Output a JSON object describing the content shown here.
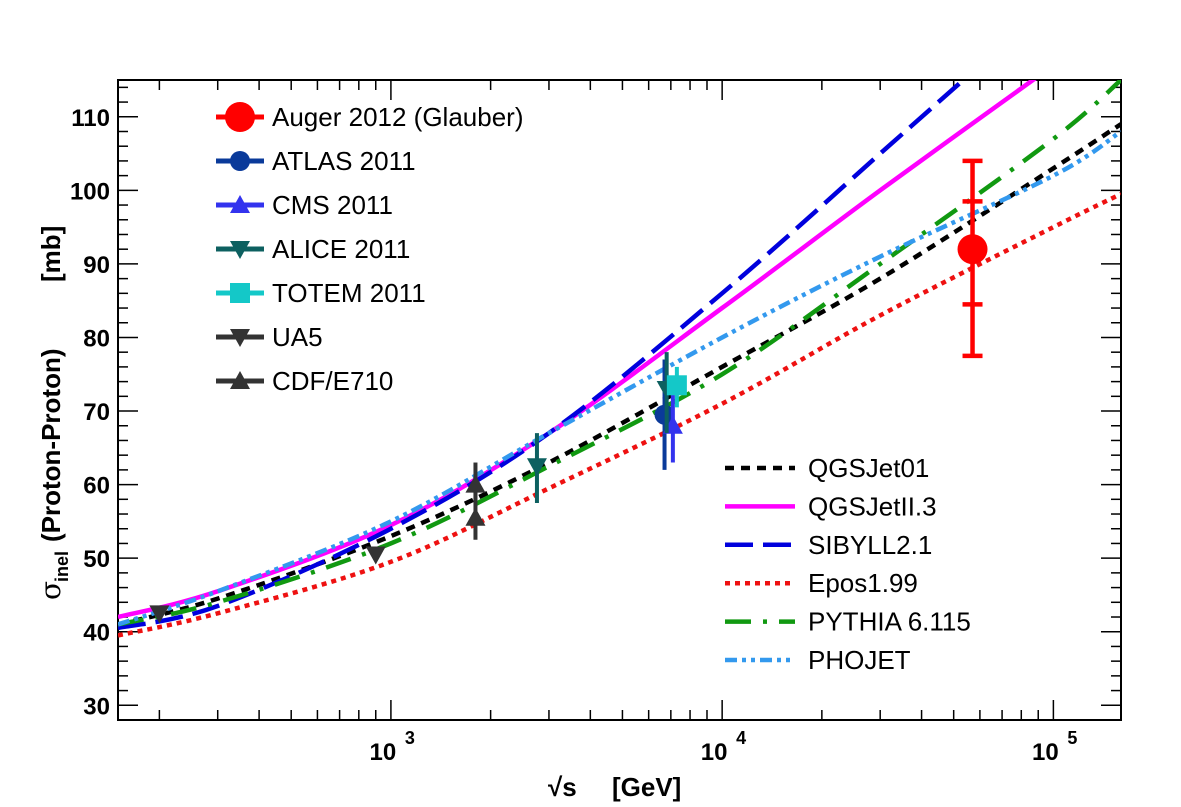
{
  "chart_data": {
    "type": "line",
    "xlabel_root": "√s",
    "xlabel_unit": "[GeV]",
    "ylabel_sigma": "σ",
    "ylabel_sub": "inel",
    "ylabel_main": "(Proton-Proton)",
    "ylabel_unit": "[mb]",
    "x_scale": "log",
    "xlim": [
      150,
      160000
    ],
    "ylim": [
      28,
      115
    ],
    "x_ticks": [
      {
        "value": 1000,
        "base": "10",
        "exp": "3"
      },
      {
        "value": 10000,
        "base": "10",
        "exp": "4"
      },
      {
        "value": 100000,
        "base": "10",
        "exp": "5"
      }
    ],
    "y_ticks": [
      30,
      40,
      50,
      60,
      70,
      80,
      90,
      100,
      110
    ],
    "grid": false,
    "legend_placement": [
      "top-left",
      "bottom-right"
    ],
    "data_series": [
      {
        "name": "Auger 2012 (Glauber)",
        "color": "#ff0000",
        "marker": "circle",
        "points": [
          {
            "x": 57000,
            "y": 92,
            "stat_lo": 84.5,
            "stat_hi": 98.5,
            "sys_lo": 77.5,
            "sys_hi": 104
          }
        ]
      },
      {
        "name": "ATLAS 2011",
        "color": "#0a3a9a",
        "marker": "circle",
        "points": [
          {
            "x": 6700,
            "y": 69.5,
            "sys_lo": 62,
            "sys_hi": 77
          }
        ]
      },
      {
        "name": "CMS 2011",
        "color": "#3333ee",
        "marker": "triangle-up",
        "points": [
          {
            "x": 7100,
            "y": 68,
            "sys_lo": 63,
            "sys_hi": 72.5
          }
        ]
      },
      {
        "name": "ALICE 2011",
        "color": "#0d6060",
        "marker": "triangle-down",
        "points": [
          {
            "x": 2760,
            "y": 62.5,
            "sys_lo": 57.5,
            "sys_hi": 67
          },
          {
            "x": 6800,
            "y": 73,
            "sys_lo": 67,
            "sys_hi": 78
          }
        ]
      },
      {
        "name": "TOTEM 2011",
        "color": "#14c8c8",
        "marker": "square",
        "points": [
          {
            "x": 7300,
            "y": 73.5,
            "sys_lo": 70.5,
            "sys_hi": 76
          }
        ]
      },
      {
        "name": "UA5",
        "color": "#333333",
        "marker": "triangle-down",
        "points": [
          {
            "x": 200,
            "y": 42.5
          },
          {
            "x": 900,
            "y": 50.5
          }
        ]
      },
      {
        "name": "CDF/E710",
        "color": "#333333",
        "marker": "triangle-up",
        "points": [
          {
            "x": 1800,
            "y": 55.5,
            "sys_lo": 52.5,
            "sys_hi": 59.5
          },
          {
            "x": 1800,
            "y": 60,
            "sys_lo": 57.5,
            "sys_hi": 63
          }
        ]
      }
    ],
    "model_series": [
      {
        "name": "QGSJet01",
        "color": "#000000",
        "dash": "short-dash",
        "x": [
          150,
          300,
          1000,
          3000,
          10000,
          30000,
          100000,
          160000
        ],
        "y": [
          41,
          44.5,
          53,
          63,
          76,
          88,
          103,
          109
        ]
      },
      {
        "name": "QGSJetII.3",
        "color": "#ff00ff",
        "dash": "solid",
        "x": [
          150,
          300,
          1000,
          3000,
          10000,
          30000,
          100000
        ],
        "y": [
          42,
          45.5,
          54.5,
          67,
          84,
          100,
          117
        ]
      },
      {
        "name": "SIBYLL2.1",
        "color": "#0000dd",
        "dash": "long-dash",
        "x": [
          150,
          300,
          1000,
          3000,
          10000,
          30000,
          60000
        ],
        "y": [
          40.5,
          43.5,
          54,
          67,
          86,
          105,
          117
        ]
      },
      {
        "name": "Epos1.99",
        "color": "#ee1111",
        "dash": "dot",
        "x": [
          150,
          300,
          1000,
          3000,
          10000,
          30000,
          100000,
          160000
        ],
        "y": [
          39.5,
          42.5,
          49.5,
          59.5,
          71,
          83,
          95,
          99.5
        ]
      },
      {
        "name": "PYTHIA 6.115",
        "color": "#119911",
        "dash": "long-dash-dot",
        "x": [
          150,
          300,
          1000,
          3000,
          10000,
          30000,
          100000,
          160000
        ],
        "y": [
          41,
          44,
          52,
          62.5,
          75,
          90,
          107,
          115
        ]
      },
      {
        "name": "PHOJET",
        "color": "#3399ee",
        "dash": "dash-dot-dot",
        "x": [
          150,
          300,
          1000,
          3000,
          10000,
          30000,
          100000,
          160000
        ],
        "y": [
          41,
          45.5,
          55,
          67,
          80,
          91,
          102,
          108
        ]
      }
    ]
  }
}
